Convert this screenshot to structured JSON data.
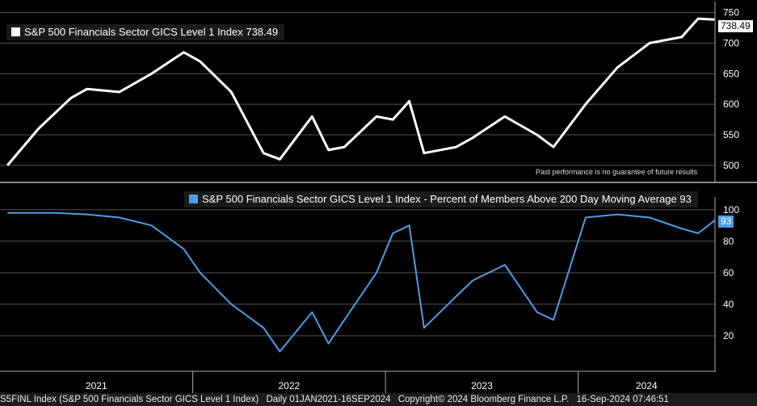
{
  "colors": {
    "background": "#000000",
    "top_series": "#ffffff",
    "bottom_series": "#4a9fe8",
    "grid": "#555555"
  },
  "footer": {
    "ticker": "S5FINL Index (S&P 500 Financials Sector GICS Level 1 Index)",
    "range": "Daily 01JAN2021-16SEP2024",
    "copyright": "Copyright© 2024 Bloomberg Finance L.P.",
    "timestamp": "16-Sep-2024 07:46:51"
  },
  "chart_data": [
    {
      "type": "line",
      "title": "S&P 500 Financials Sector GICS Level 1 Index 738.49",
      "series": [
        {
          "name": "S&P 500 Financials Sector GICS Level 1 Index",
          "last_value_label": "738.49"
        }
      ],
      "annotation": "Past performance is no guarantee of future results",
      "y_ticks": [
        "750",
        "700",
        "650",
        "600",
        "550",
        "500"
      ],
      "ylim": [
        480,
        760
      ],
      "x": [
        "2021-01",
        "2021-03",
        "2021-05",
        "2021-06",
        "2021-08",
        "2021-10",
        "2021-12",
        "2022-01",
        "2022-03",
        "2022-05",
        "2022-06",
        "2022-08",
        "2022-09",
        "2022-10",
        "2022-12",
        "2023-01",
        "2023-02",
        "2023-03",
        "2023-05",
        "2023-06",
        "2023-08",
        "2023-10",
        "2023-11",
        "2024-01",
        "2024-03",
        "2024-05",
        "2024-07",
        "2024-08",
        "2024-09"
      ],
      "y": [
        500,
        560,
        610,
        625,
        620,
        650,
        685,
        670,
        620,
        520,
        510,
        580,
        525,
        530,
        580,
        575,
        605,
        520,
        530,
        545,
        580,
        550,
        530,
        600,
        660,
        700,
        710,
        740,
        738.49
      ],
      "grid": true
    },
    {
      "type": "line",
      "title": "S&P 500 Financials Sector GICS Level 1 Index - Percent of Members Above 200 Day Moving Average 93",
      "series": [
        {
          "name": "S&P 500 Financials Sector GICS Level 1 Index - Percent of Members Above 200 Day Moving Average",
          "last_value_label": "93"
        }
      ],
      "y_ticks": [
        "100",
        "80",
        "60",
        "40",
        "20"
      ],
      "ylim": [
        0,
        105
      ],
      "x_ticks": [
        "2021",
        "2022",
        "2023",
        "2024"
      ],
      "x": [
        "2021-01",
        "2021-04",
        "2021-06",
        "2021-08",
        "2021-10",
        "2021-12",
        "2022-01",
        "2022-03",
        "2022-05",
        "2022-06",
        "2022-08",
        "2022-09",
        "2022-10",
        "2022-12",
        "2023-01",
        "2023-02",
        "2023-03",
        "2023-05",
        "2023-06",
        "2023-08",
        "2023-10",
        "2023-11",
        "2024-01",
        "2024-03",
        "2024-05",
        "2024-07",
        "2024-08",
        "2024-09"
      ],
      "y": [
        98,
        98,
        97,
        95,
        90,
        75,
        60,
        40,
        25,
        10,
        35,
        15,
        30,
        60,
        85,
        90,
        25,
        45,
        55,
        65,
        35,
        30,
        95,
        97,
        95,
        88,
        85,
        93
      ],
      "grid": true
    }
  ]
}
